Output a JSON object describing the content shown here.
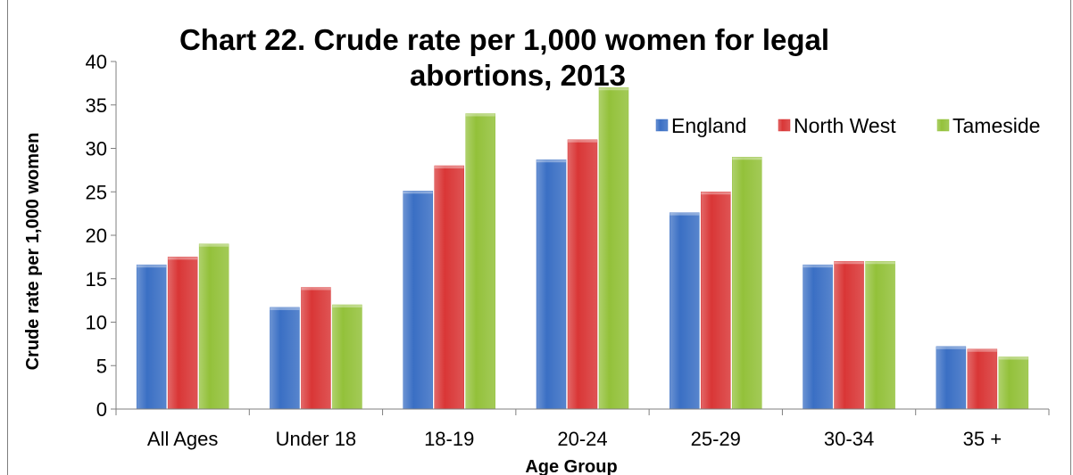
{
  "chart_data": {
    "type": "bar",
    "title_lines": [
      "Chart 22. Crude rate per 1,000 women for legal",
      "abortions, 2013"
    ],
    "xlabel": "Age Group",
    "ylabel": "Crude rate per 1,000 women",
    "ylim": [
      0,
      40
    ],
    "yticks": [
      0,
      5,
      10,
      15,
      20,
      25,
      30,
      35,
      40
    ],
    "grid": false,
    "legend_position": "top-right",
    "categories": [
      "All Ages",
      "Under 18",
      "18-19",
      "20-24",
      "25-29",
      "30-34",
      "35 +"
    ],
    "series": [
      {
        "name": "England",
        "color": "#3a6fc4",
        "values": [
          16.6,
          11.7,
          25.1,
          28.7,
          22.6,
          16.6,
          7.2
        ]
      },
      {
        "name": "North West",
        "color": "#d93636",
        "values": [
          17.5,
          14.0,
          28.0,
          31.0,
          25.0,
          17.0,
          6.9
        ]
      },
      {
        "name": "Tameside",
        "color": "#93c13a",
        "values": [
          19.0,
          12.0,
          34.0,
          37.0,
          29.0,
          17.0,
          6.0
        ]
      }
    ]
  }
}
